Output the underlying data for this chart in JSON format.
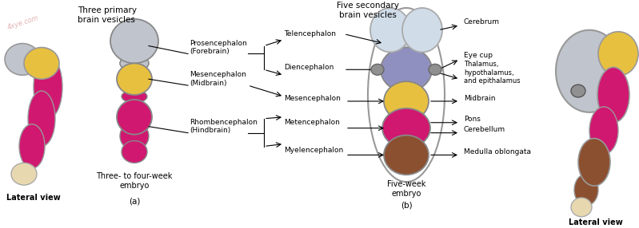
{
  "bg_color": "#ffffff",
  "watermark": "4xye.com",
  "section_a_title": "Three primary\nbrain vesicles",
  "section_b_title": "Five secondary\nbrain vesicles",
  "label_lateral_view_left": "Lateral view",
  "label_lateral_view_right": "Lateral view",
  "label_embryo_a": "Three- to four-week\nembryo",
  "label_embryo_b": "Five-week\nembryo",
  "label_a": "(a)",
  "label_b": "(b)",
  "colors": {
    "forebrain_gray": "#c0c4cc",
    "forebrain_yellow": "#e8c040",
    "hindbrain_magenta": "#d01870",
    "spinal_cream": "#e8d8b0",
    "diencephalon_blue": "#9090c0",
    "myelencephalon_brown": "#8B5030",
    "cerebrum_light": "#d0dce8",
    "outline": "#888888",
    "text": "#000000",
    "eyecup": "#909090"
  }
}
